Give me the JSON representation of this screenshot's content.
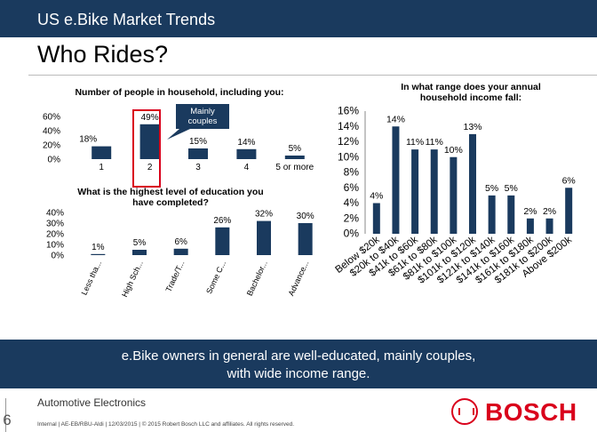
{
  "header": {
    "title": "US e.Bike Market Trends"
  },
  "slide_title": "Who Rides?",
  "banner": {
    "line1": "e.Bike owners in general are well-educated, mainly couples,",
    "line2": "with wide income range."
  },
  "footer": {
    "page_number": "6",
    "company": "Automotive Electronics",
    "legal": "Internal | AE-EB/RBU-Aldi | 12/03/2015 | © 2015 Robert Bosch LLC and affiliates. All rights reserved.",
    "logo_text": "BOSCH"
  },
  "colors": {
    "bar": "#1a3a5e",
    "header": "#1a3a5e",
    "highlight": "#d9001b",
    "callout": "#1a3a5e"
  },
  "chart_data": [
    {
      "type": "bar",
      "title": "Number of people in household, including you:",
      "categories": [
        "1",
        "2",
        "3",
        "4",
        "5 or more"
      ],
      "values": [
        18,
        49,
        15,
        14,
        5
      ],
      "value_labels": [
        "18%",
        "49%",
        "15%",
        "14%",
        "5%"
      ],
      "yticks": [
        "60%",
        "40%",
        "20%",
        "0%"
      ],
      "ylim": [
        0,
        60
      ],
      "highlight_index": 1,
      "callout": "Mainly couples"
    },
    {
      "type": "bar",
      "title": "What is the highest level of education you have completed?",
      "categories": [
        "Less tha...",
        "High Sch...",
        "Trade/T...",
        "Some C...",
        "Bachelor...",
        "Advance..."
      ],
      "values": [
        1,
        5,
        6,
        26,
        32,
        30
      ],
      "value_labels": [
        "1%",
        "5%",
        "6%",
        "26%",
        "32%",
        "30%"
      ],
      "yticks": [
        "40%",
        "30%",
        "20%",
        "10%",
        "0%"
      ],
      "ylim": [
        0,
        40
      ]
    },
    {
      "type": "bar",
      "title": "In what range does your annual household income fall:",
      "categories": [
        "Below $20k",
        "$20k to $40k",
        "$41k to $60k",
        "$61k to $80k",
        "$81k to $100k",
        "$101k to $120k",
        "$121k to $140k",
        "$141k to $160k",
        "$161k to $180k",
        "$181k to $200k",
        "Above $200k"
      ],
      "values": [
        4,
        14,
        11,
        11,
        10,
        13,
        5,
        5,
        2,
        2,
        6
      ],
      "value_labels": [
        "4%",
        "14%",
        "11%",
        "11%",
        "10%",
        "13%",
        "5%",
        "5%",
        "2%",
        "2%",
        "6%"
      ],
      "yticks": [
        "16%",
        "14%",
        "12%",
        "10%",
        "8%",
        "6%",
        "4%",
        "2%",
        "0%"
      ],
      "ylim": [
        0,
        16
      ]
    }
  ]
}
